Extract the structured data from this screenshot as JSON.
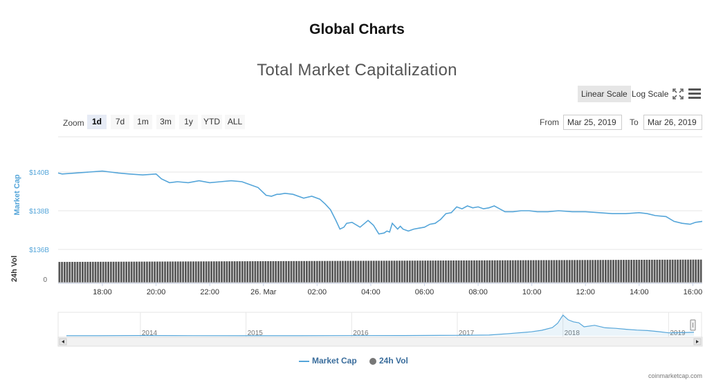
{
  "page": {
    "heading": "Global Charts"
  },
  "toolbar": {
    "linear_scale": "Linear Scale",
    "log_scale": "Log Scale",
    "active_scale": "Linear Scale",
    "icons": [
      "fullscreen-icon",
      "menu-icon"
    ]
  },
  "range_selector": {
    "zoom_label": "Zoom",
    "buttons": [
      "1d",
      "7d",
      "1m",
      "3m",
      "1y",
      "YTD",
      "ALL"
    ],
    "active": "1d",
    "from_label": "From",
    "from_value": "Mar 25, 2019",
    "to_label": "To",
    "to_value": "Mar 26, 2019"
  },
  "legend": {
    "market_cap": "Market Cap",
    "vol": "24h Vol"
  },
  "credit": "coinmarketcap.com",
  "colors": {
    "market_cap": "#54a5d9",
    "volume": "#555555",
    "active_zoom_bg": "#e6ebf5"
  },
  "chart_data": {
    "type": "line",
    "title": "Total Market Capitalization",
    "ylabel": "Market Cap",
    "ylabel_vol": "24h Vol",
    "yticks": [
      "$140B",
      "$138B",
      "$136B"
    ],
    "ylim": [
      136,
      140
    ],
    "vol_tick": "0",
    "xticks": [
      {
        "t": 18,
        "label": "18:00"
      },
      {
        "t": 20,
        "label": "20:00"
      },
      {
        "t": 22,
        "label": "22:00"
      },
      {
        "t": 24,
        "label": "26. Mar"
      },
      {
        "t": 26,
        "label": "02:00"
      },
      {
        "t": 28,
        "label": "04:00"
      },
      {
        "t": 30,
        "label": "06:00"
      },
      {
        "t": 32,
        "label": "08:00"
      },
      {
        "t": 34,
        "label": "10:00"
      },
      {
        "t": 36,
        "label": "12:00"
      },
      {
        "t": 38,
        "label": "14:00"
      },
      {
        "t": 40,
        "label": "16:00"
      }
    ],
    "xlim": [
      16.35,
      40.35
    ],
    "series": [
      {
        "name": "Market Cap",
        "x": [
          16.35,
          16.5,
          17.0,
          17.5,
          18.0,
          18.3,
          18.6,
          19.0,
          19.5,
          20.0,
          20.2,
          20.5,
          20.8,
          21.2,
          21.6,
          22.0,
          22.4,
          22.8,
          23.2,
          23.5,
          23.8,
          24.1,
          24.3,
          24.5,
          24.6,
          24.8,
          25.1,
          25.5,
          25.8,
          26.1,
          26.3,
          26.5,
          26.7,
          26.85,
          27.0,
          27.1,
          27.3,
          27.6,
          27.9,
          28.1,
          28.3,
          28.5,
          28.6,
          28.7,
          28.8,
          29.0,
          29.1,
          29.2,
          29.4,
          29.6,
          29.8,
          30.0,
          30.2,
          30.4,
          30.6,
          30.8,
          31.0,
          31.2,
          31.4,
          31.6,
          31.8,
          32.0,
          32.2,
          32.4,
          32.6,
          32.8,
          33.0,
          33.3,
          33.6,
          33.9,
          34.2,
          34.6,
          35.0,
          35.5,
          36.0,
          36.5,
          37.0,
          37.5,
          38.0,
          38.3,
          38.6,
          39.0,
          39.3,
          39.6,
          39.9,
          40.1,
          40.35
        ],
        "y": [
          139.95,
          139.9,
          139.95,
          140.0,
          140.05,
          140.0,
          139.95,
          139.9,
          139.85,
          139.9,
          139.65,
          139.45,
          139.5,
          139.45,
          139.55,
          139.45,
          139.5,
          139.55,
          139.5,
          139.35,
          139.2,
          138.8,
          138.75,
          138.85,
          138.85,
          138.9,
          138.85,
          138.65,
          138.75,
          138.6,
          138.35,
          138.05,
          137.5,
          137.05,
          137.15,
          137.35,
          137.4,
          137.15,
          137.5,
          137.25,
          136.8,
          136.85,
          136.95,
          136.9,
          137.35,
          137.05,
          137.2,
          137.05,
          136.95,
          137.05,
          137.1,
          137.15,
          137.3,
          137.35,
          137.55,
          137.85,
          137.9,
          138.2,
          138.1,
          138.25,
          138.15,
          138.2,
          138.1,
          138.15,
          138.25,
          138.1,
          137.95,
          137.95,
          138.0,
          138.0,
          137.95,
          137.95,
          138.0,
          137.95,
          137.95,
          137.9,
          137.85,
          137.85,
          137.9,
          137.85,
          137.75,
          137.7,
          137.45,
          137.35,
          137.3,
          137.4,
          137.45
        ]
      },
      {
        "name": "24h Vol",
        "note_levels": "relative bar heights (0-1)",
        "x_start": 16.35,
        "x_end": 40.35,
        "count": 250,
        "level_start": 0.88,
        "level_end": 0.98
      }
    ],
    "navigator": {
      "xticks": [
        "2014",
        "2015",
        "2016",
        "2017",
        "2018",
        "2019"
      ],
      "x": [
        2013.3,
        2013.6,
        2014.0,
        2014.5,
        2015.0,
        2015.5,
        2016.0,
        2016.5,
        2017.0,
        2017.3,
        2017.5,
        2017.7,
        2017.8,
        2017.9,
        2017.95,
        2018.0,
        2018.05,
        2018.1,
        2018.15,
        2018.2,
        2018.3,
        2018.4,
        2018.5,
        2018.6,
        2018.7,
        2018.8,
        2018.9,
        2019.0,
        2019.1,
        2019.24
      ],
      "y": [
        1.5,
        1.6,
        10,
        5,
        4,
        3.5,
        7,
        10,
        18,
        30,
        90,
        160,
        220,
        330,
        500,
        830,
        640,
        560,
        520,
        360,
        420,
        320,
        300,
        260,
        230,
        210,
        170,
        120,
        125,
        140
      ]
    }
  }
}
